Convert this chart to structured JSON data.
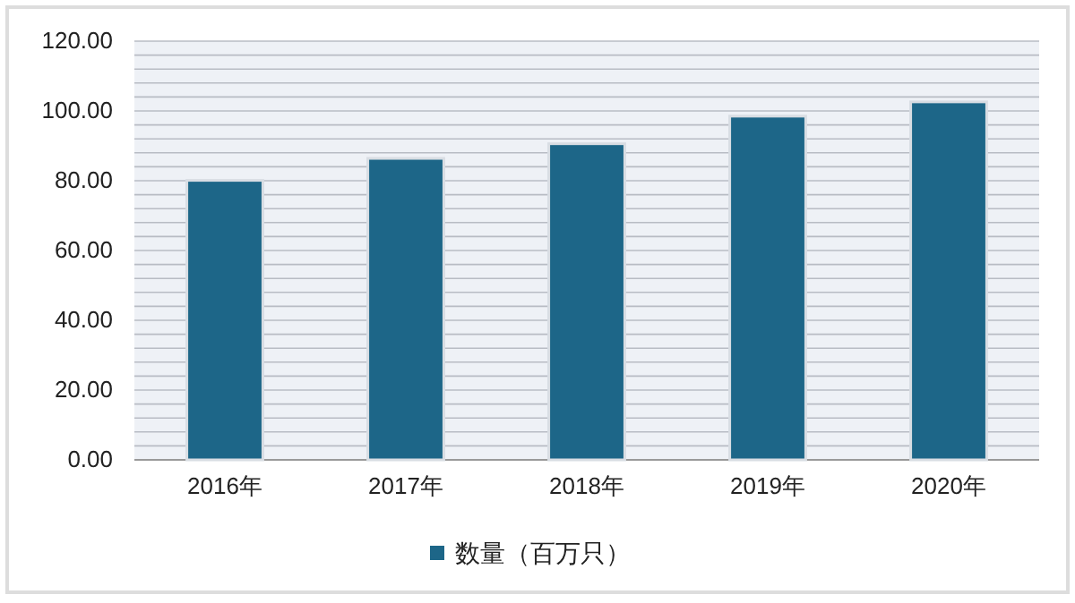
{
  "chart_data": {
    "type": "bar",
    "categories": [
      "2016年",
      "2017年",
      "2018年",
      "2019年",
      "2020年"
    ],
    "series": [
      {
        "name": "数量（百万只）",
        "color": "#1d6688",
        "values": [
          80.1,
          86.4,
          90.6,
          98.5,
          102.6
        ]
      }
    ],
    "ylim": [
      0,
      120
    ],
    "yticks": [
      {
        "value": 0,
        "label": "0.00"
      },
      {
        "value": 4,
        "label": null
      },
      {
        "value": 8,
        "label": null
      },
      {
        "value": 12,
        "label": null
      },
      {
        "value": 16,
        "label": null
      },
      {
        "value": 20,
        "label": "20.00"
      },
      {
        "value": 24,
        "label": null
      },
      {
        "value": 28,
        "label": null
      },
      {
        "value": 32,
        "label": null
      },
      {
        "value": 36,
        "label": null
      },
      {
        "value": 40,
        "label": "40.00"
      },
      {
        "value": 44,
        "label": null
      },
      {
        "value": 48,
        "label": null
      },
      {
        "value": 52,
        "label": null
      },
      {
        "value": 56,
        "label": null
      },
      {
        "value": 60,
        "label": "60.00"
      },
      {
        "value": 64,
        "label": null
      },
      {
        "value": 68,
        "label": null
      },
      {
        "value": 72,
        "label": null
      },
      {
        "value": 76,
        "label": null
      },
      {
        "value": 80,
        "label": "80.00"
      },
      {
        "value": 84,
        "label": null
      },
      {
        "value": 88,
        "label": null
      },
      {
        "value": 92,
        "label": null
      },
      {
        "value": 96,
        "label": null
      },
      {
        "value": 100,
        "label": "100.00"
      },
      {
        "value": 104,
        "label": null
      },
      {
        "value": 108,
        "label": null
      },
      {
        "value": 112,
        "label": null
      },
      {
        "value": 116,
        "label": null
      },
      {
        "value": 120,
        "label": "120.00"
      }
    ],
    "grid": "y",
    "legend": "bottom"
  }
}
